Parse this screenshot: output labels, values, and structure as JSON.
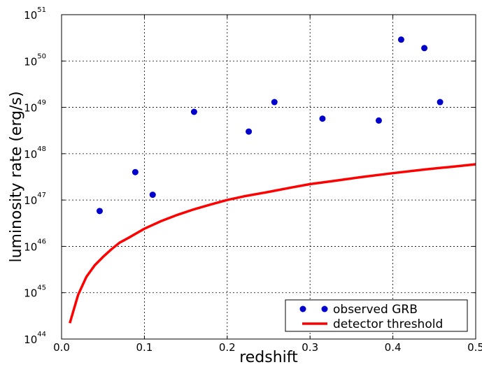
{
  "chart_data": {
    "type": "scatter",
    "title": "",
    "xlabel": "redshift",
    "ylabel": "luminosity rate (erg/s)",
    "xlim": [
      0.0,
      0.5
    ],
    "ylim": [
      1e+44,
      1e+51
    ],
    "yscale": "log",
    "grid": true,
    "legend_position": "lower-right",
    "x_ticks": [
      {
        "value": 0.0,
        "label": "0.0"
      },
      {
        "value": 0.1,
        "label": "0.1"
      },
      {
        "value": 0.2,
        "label": "0.2"
      },
      {
        "value": 0.3,
        "label": "0.3"
      },
      {
        "value": 0.4,
        "label": "0.4"
      },
      {
        "value": 0.5,
        "label": "0.5"
      }
    ],
    "y_ticks": [
      {
        "exp": 44,
        "base": "10",
        "sup": "44"
      },
      {
        "exp": 45,
        "base": "10",
        "sup": "45"
      },
      {
        "exp": 46,
        "base": "10",
        "sup": "46"
      },
      {
        "exp": 47,
        "base": "10",
        "sup": "47"
      },
      {
        "exp": 48,
        "base": "10",
        "sup": "48"
      },
      {
        "exp": 49,
        "base": "10",
        "sup": "49"
      },
      {
        "exp": 50,
        "base": "10",
        "sup": "50"
      },
      {
        "exp": 51,
        "base": "10",
        "sup": "51"
      }
    ],
    "series": [
      {
        "name": "observed GRB",
        "kind": "scatter",
        "color": "#0000cc",
        "points": [
          {
            "x": 0.046,
            "y": 5.8e+46
          },
          {
            "x": 0.089,
            "y": 4e+47
          },
          {
            "x": 0.11,
            "y": 1.3e+47
          },
          {
            "x": 0.16,
            "y": 8e+48
          },
          {
            "x": 0.226,
            "y": 3e+48
          },
          {
            "x": 0.257,
            "y": 1.3e+49
          },
          {
            "x": 0.315,
            "y": 5.7e+48
          },
          {
            "x": 0.383,
            "y": 5.2e+48
          },
          {
            "x": 0.41,
            "y": 2.9e+50
          },
          {
            "x": 0.438,
            "y": 1.9e+50
          },
          {
            "x": 0.457,
            "y": 1.3e+49
          }
        ]
      },
      {
        "name": "detector threshold",
        "kind": "line",
        "color": "#ff0000",
        "points": [
          {
            "x": 0.01,
            "y": 2.2e+44
          },
          {
            "x": 0.015,
            "y": 4.5e+44
          },
          {
            "x": 0.02,
            "y": 9e+44
          },
          {
            "x": 0.03,
            "y": 2.2e+45
          },
          {
            "x": 0.04,
            "y": 3.9e+45
          },
          {
            "x": 0.05,
            "y": 5.9e+45
          },
          {
            "x": 0.06,
            "y": 8.6e+45
          },
          {
            "x": 0.07,
            "y": 1.2e+46
          },
          {
            "x": 0.08,
            "y": 1.5e+46
          },
          {
            "x": 0.09,
            "y": 1.9e+46
          },
          {
            "x": 0.1,
            "y": 2.4e+46
          },
          {
            "x": 0.12,
            "y": 3.5e+46
          },
          {
            "x": 0.14,
            "y": 4.8e+46
          },
          {
            "x": 0.16,
            "y": 6.3e+46
          },
          {
            "x": 0.18,
            "y": 8e+46
          },
          {
            "x": 0.2,
            "y": 1e+47
          },
          {
            "x": 0.22,
            "y": 1.2e+47
          },
          {
            "x": 0.25,
            "y": 1.5e+47
          },
          {
            "x": 0.28,
            "y": 1.9e+47
          },
          {
            "x": 0.3,
            "y": 2.2e+47
          },
          {
            "x": 0.33,
            "y": 2.6e+47
          },
          {
            "x": 0.36,
            "y": 3.1e+47
          },
          {
            "x": 0.4,
            "y": 3.8e+47
          },
          {
            "x": 0.44,
            "y": 4.6e+47
          },
          {
            "x": 0.47,
            "y": 5.2e+47
          },
          {
            "x": 0.5,
            "y": 5.9e+47
          }
        ]
      }
    ]
  }
}
